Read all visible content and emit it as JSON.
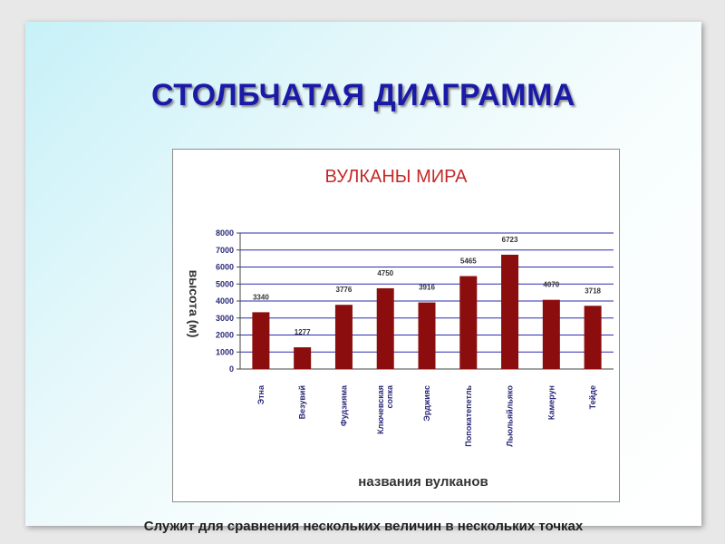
{
  "slide": {
    "title": "СТОЛБЧАТАЯ ДИАГРАММА",
    "caption": "Служит для сравнения нескольких величин в нескольких точках"
  },
  "colors": {
    "title": "#1a1aa8",
    "chart_title": "#c62828",
    "bar": "#8b0d0d",
    "axis_text": "#2a2a7a",
    "grid": "#2b2bb0"
  },
  "chart_data": {
    "type": "bar",
    "title": "ВУЛКАНЫ МИРА",
    "xlabel": "названия вулканов",
    "ylabel": "высота (м)",
    "categories": [
      "Этна",
      "Везувий",
      "Фудзияма",
      "Ключевская сопка",
      "Эрджияс",
      "Попокатепетль",
      "Льюльяйльяко",
      "Камерун",
      "Тейде"
    ],
    "values": [
      3340,
      1277,
      3776,
      4750,
      3916,
      5465,
      6723,
      4070,
      3718
    ],
    "data_labels": [
      "3340",
      "1277",
      "3776",
      "4750",
      "3916",
      "5465",
      "6723",
      "4070",
      "3718"
    ],
    "ylim": [
      0,
      8000
    ],
    "yticks": [
      "0",
      "1000",
      "2000",
      "3000",
      "4000",
      "5000",
      "6000",
      "7000",
      "8000"
    ],
    "grid": true
  }
}
